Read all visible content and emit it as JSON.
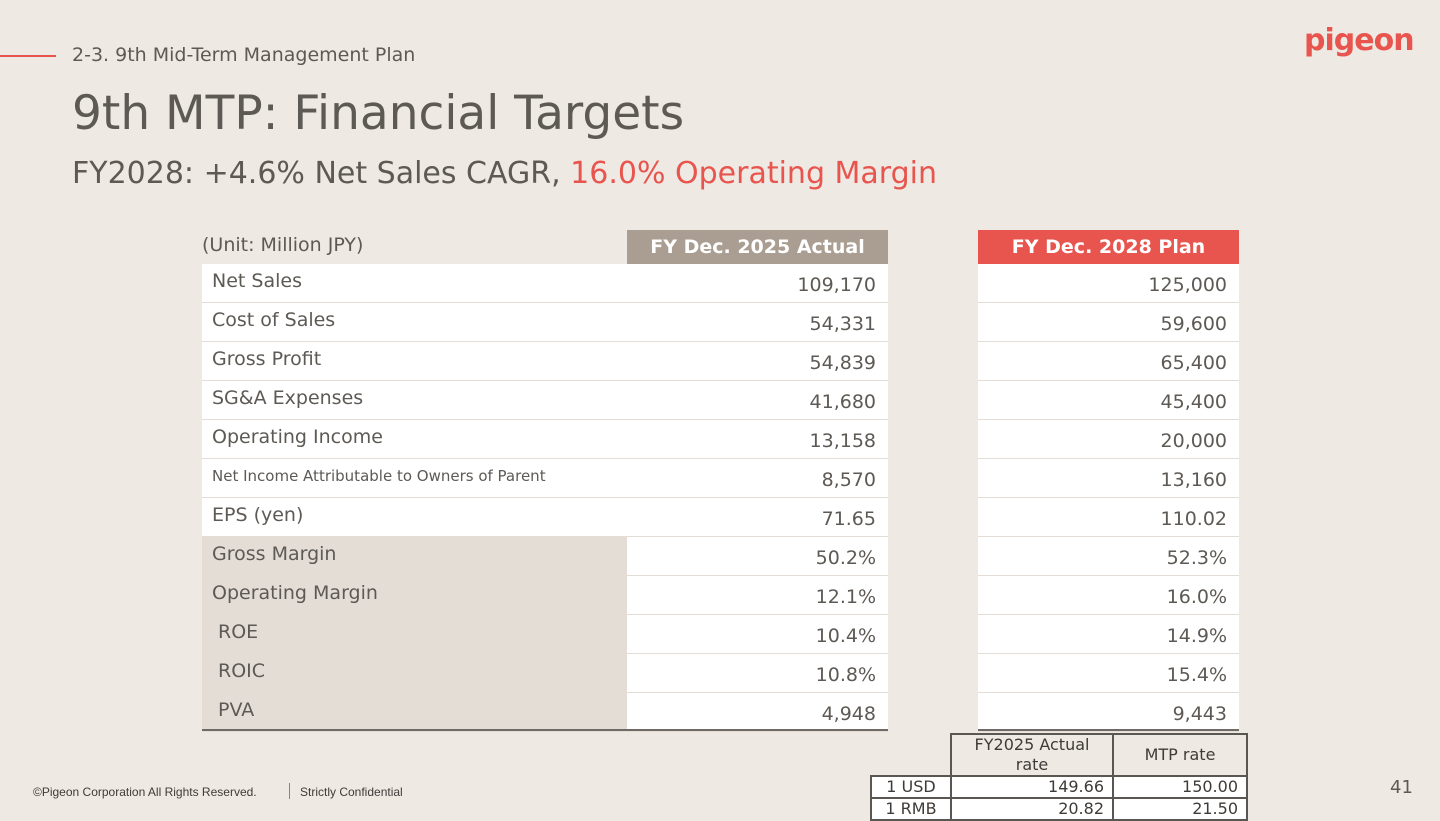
{
  "header": {
    "section": "2-3. 9th Mid-Term Management Plan",
    "title": "9th MTP: Financial Targets",
    "subtitle_prefix": "FY2028: +4.6% Net Sales CAGR, ",
    "subtitle_accent": "16.0% Operating Margin",
    "logo_text": "pigeon"
  },
  "colors": {
    "accent": "#e8554e",
    "actual_header": "#a99e91",
    "background": "#efe9e3"
  },
  "table": {
    "unit_label": "(Unit: Million JPY)",
    "actual_header": "FY Dec. 2025 Actual",
    "plan_header": "FY Dec. 2028 Plan",
    "rows": [
      {
        "label": "Net Sales",
        "actual": "109,170",
        "plan": "125,000"
      },
      {
        "label": "Cost of Sales",
        "actual": "54,331",
        "plan": "59,600"
      },
      {
        "label": "Gross Profit",
        "actual": "54,839",
        "plan": "65,400"
      },
      {
        "label": "SG&A Expenses",
        "actual": "41,680",
        "plan": "45,400"
      },
      {
        "label": "Operating Income",
        "actual": "13,158",
        "plan": "20,000"
      },
      {
        "label": "Net Income Attributable to Owners of Parent",
        "actual": "8,570",
        "plan": "13,160"
      },
      {
        "label": "EPS (yen)",
        "actual": "71.65",
        "plan": "110.02"
      },
      {
        "label": "Gross Margin",
        "actual": "50.2%",
        "plan": "52.3%"
      },
      {
        "label": "Operating Margin",
        "actual": "12.1%",
        "plan": "16.0%"
      },
      {
        "label": "ROE",
        "actual": "10.4%",
        "plan": "14.9%"
      },
      {
        "label": "ROIC",
        "actual": "10.8%",
        "plan": "15.4%"
      },
      {
        "label": "PVA",
        "actual": "4,948",
        "plan": "9,443"
      }
    ]
  },
  "fx": {
    "col1": "FY2025 Actual rate",
    "col2": "MTP rate",
    "rows": [
      {
        "currency": "1 USD",
        "actual": "149.66",
        "mtp": "150.00"
      },
      {
        "currency": "1 RMB",
        "actual": "20.82",
        "mtp": "21.50"
      }
    ]
  },
  "footer": {
    "copyright": "©Pigeon Corporation All Rights Reserved.",
    "confidential": "Strictly Confidential",
    "page_number": "41"
  }
}
